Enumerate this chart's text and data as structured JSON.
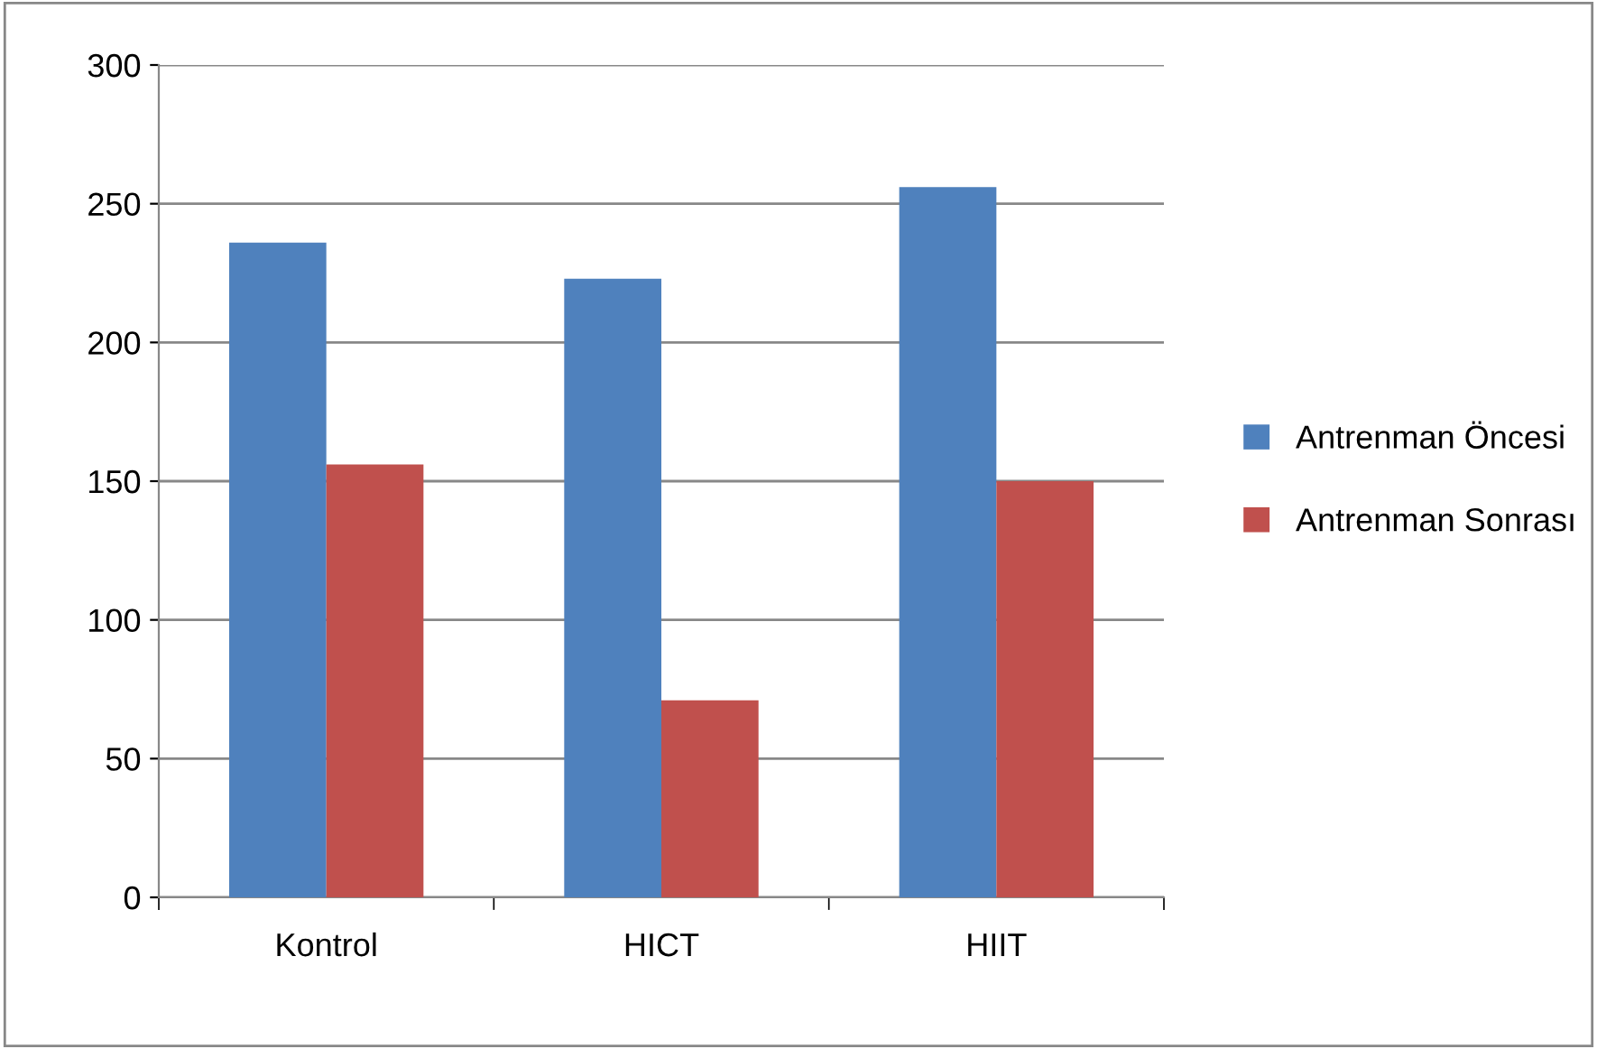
{
  "chart_data": {
    "type": "bar",
    "categories": [
      "Kontrol",
      "HICT",
      "HIIT"
    ],
    "series": [
      {
        "name": "Antrenman Öncesi",
        "color": "#4f81bd",
        "values": [
          236,
          223,
          256
        ]
      },
      {
        "name": "Antrenman Sonrası",
        "color": "#c0504d",
        "values": [
          156,
          71,
          150
        ]
      }
    ],
    "ylim": [
      0,
      300
    ],
    "yticks": [
      0,
      50,
      100,
      150,
      200,
      250,
      300
    ],
    "grid": "y",
    "legend": "right"
  }
}
